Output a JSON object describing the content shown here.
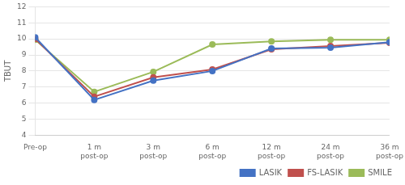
{
  "chart_data": {
    "type": "line",
    "categories": [
      "Pre-op",
      "1 m\npost-op",
      "3 m\npost-op",
      "6 m\npost-op",
      "12 m\npost-op",
      "24 m\npost-op",
      "36 m\npost-op"
    ],
    "series": [
      {
        "name": "LASIK",
        "color": "#4472C4",
        "marker": "circle",
        "values": [
          10.1,
          6.2,
          7.4,
          8.0,
          9.4,
          9.45,
          9.8
        ]
      },
      {
        "name": "FS-LASIK",
        "color": "#C0504D",
        "marker": "circle",
        "values": [
          10.0,
          6.4,
          7.6,
          8.1,
          9.35,
          9.55,
          9.75
        ]
      },
      {
        "name": "SMILE",
        "color": "#9BBB59",
        "marker": "circle",
        "values": [
          9.95,
          6.7,
          7.95,
          9.65,
          9.85,
          9.95,
          9.95
        ]
      }
    ],
    "ylabel": "TBUT",
    "ylim": [
      4,
      12
    ],
    "yticks": [
      4,
      5,
      6,
      7,
      8,
      9,
      10,
      11,
      12
    ],
    "grid": true,
    "legend": "lower right"
  }
}
